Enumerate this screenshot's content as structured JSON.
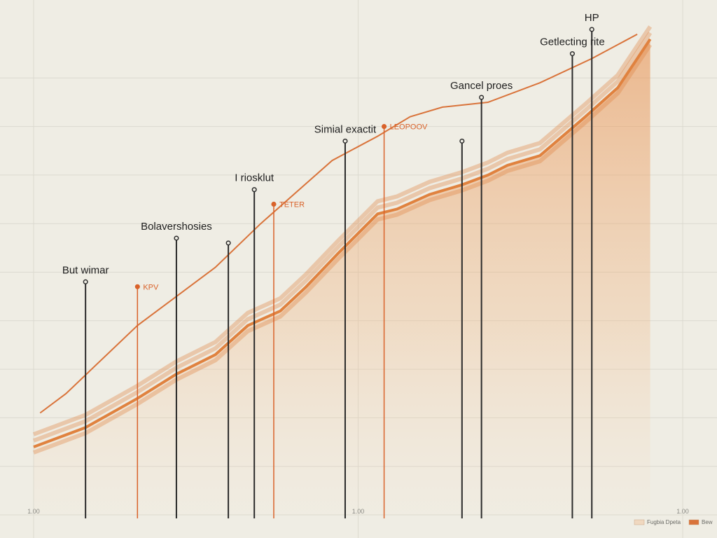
{
  "chart_data": {
    "type": "area",
    "title": "",
    "xlabel": "",
    "ylabel": "",
    "grid": true,
    "xlim": [
      0,
      100
    ],
    "ylim": [
      0,
      100
    ],
    "x_ticks": [
      {
        "x": 0,
        "label": "1.00"
      },
      {
        "x": 50,
        "label": "1.00"
      },
      {
        "x": 100,
        "label": "1.00"
      }
    ],
    "series": [
      {
        "color": "#e0823f",
        "fill": "#eeb07a",
        "points": [
          [
            0,
            14
          ],
          [
            8,
            18
          ],
          [
            16,
            24
          ],
          [
            22,
            29
          ],
          [
            28,
            33
          ],
          [
            33,
            39
          ],
          [
            38,
            42
          ],
          [
            42,
            47
          ],
          [
            47,
            54
          ],
          [
            50,
            58
          ],
          [
            53,
            62
          ],
          [
            56,
            63
          ],
          [
            61,
            66
          ],
          [
            66,
            68
          ],
          [
            70,
            70
          ],
          [
            73,
            72
          ],
          [
            78,
            74
          ],
          [
            85,
            82
          ],
          [
            90,
            88
          ],
          [
            93,
            94
          ],
          [
            95,
            98
          ]
        ]
      },
      {
        "color": "#d9733a",
        "points": [
          [
            1,
            21
          ],
          [
            5,
            25
          ],
          [
            16,
            39
          ],
          [
            28,
            51
          ],
          [
            35,
            60
          ],
          [
            46,
            73
          ],
          [
            53,
            78
          ],
          [
            58,
            82
          ],
          [
            63,
            84
          ],
          [
            70,
            85
          ],
          [
            78,
            89
          ],
          [
            86,
            94
          ],
          [
            93,
            99
          ]
        ]
      }
    ],
    "annotations": [
      {
        "x": 8,
        "y": 48,
        "label": "But wimar",
        "color": "#2a2a2a"
      },
      {
        "x": 16,
        "y": 47,
        "label": "KPV",
        "color": "#d9622a"
      },
      {
        "x": 22,
        "y": 57,
        "label": "Bolavershosies",
        "color": "#2a2a2a"
      },
      {
        "x": 30,
        "y": 56,
        "label": "",
        "color": "#2a2a2a"
      },
      {
        "x": 34,
        "y": 67,
        "label": "I riosklut",
        "color": "#2a2a2a"
      },
      {
        "x": 37,
        "y": 64,
        "label": "TETER",
        "color": "#d9622a"
      },
      {
        "x": 48,
        "y": 77,
        "label": "Simial exactit",
        "color": "#2a2a2a"
      },
      {
        "x": 54,
        "y": 80,
        "label": "LEOPOOV",
        "color": "#d9622a"
      },
      {
        "x": 66,
        "y": 77,
        "label": "",
        "color": "#2a2a2a"
      },
      {
        "x": 69,
        "y": 86,
        "label": "Gancel proes",
        "color": "#2a2a2a"
      },
      {
        "x": 83,
        "y": 95,
        "label": "Getlecting rite",
        "color": "#2a2a2a"
      },
      {
        "x": 86,
        "y": 100,
        "label": "HP",
        "color": "#2a2a2a"
      }
    ],
    "legend": {
      "placement": "bottom-right",
      "entries": [
        {
          "label": "Fugbia Dpeta",
          "color": "#f0d8c0"
        },
        {
          "label": "Bew",
          "color": "#d9733a"
        }
      ]
    }
  }
}
